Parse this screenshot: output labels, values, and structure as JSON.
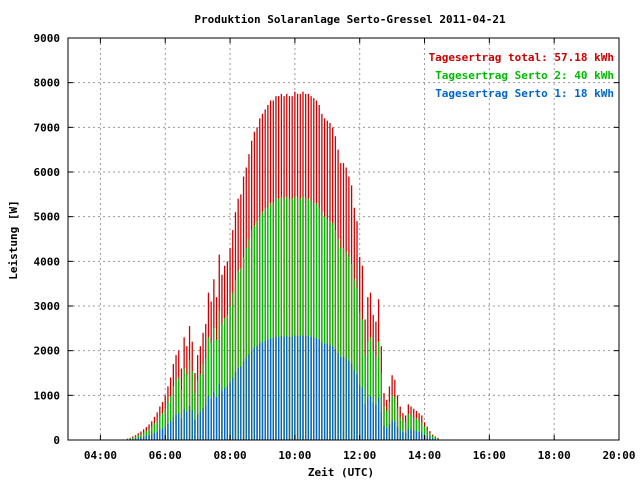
{
  "chart_data": {
    "type": "bar",
    "title": "Produktion Solaranlage Serto-Gressel 2011-04-21",
    "xlabel": "Zeit (UTC)",
    "ylabel": "Leistung [W]",
    "xlim": [
      3.0,
      20.0
    ],
    "ylim": [
      0,
      9000
    ],
    "x_ticks": [
      "04:00",
      "06:00",
      "08:00",
      "10:00",
      "12:00",
      "14:00",
      "16:00",
      "18:00",
      "20:00"
    ],
    "y_ticks": [
      "0",
      "1000",
      "2000",
      "3000",
      "4000",
      "5000",
      "6000",
      "7000",
      "8000",
      "9000"
    ],
    "grid": true,
    "legend_position": "top-right",
    "legend": [
      {
        "text": "Tagesertrag total: 57.18 kWh",
        "color": "#cc0000"
      },
      {
        "text": "Tagesertrag Serto 2: 40 kWh",
        "color": "#00bb00"
      },
      {
        "text": "Tagesertrag Serto 1: 18 kWh",
        "color": "#0066cc"
      }
    ],
    "interval_minutes": 5,
    "x_start": "04:50",
    "x_step_minutes": 5,
    "series": [
      {
        "name": "Tagesertrag total: 57.18 kWh",
        "color": "#cc0000",
        "values": [
          30,
          50,
          80,
          110,
          150,
          190,
          240,
          290,
          350,
          420,
          520,
          620,
          750,
          850,
          1000,
          1200,
          1400,
          1700,
          1900,
          2000,
          1600,
          2300,
          2100,
          2550,
          2200,
          1500,
          1900,
          2100,
          2400,
          2600,
          3300,
          3100,
          3600,
          3200,
          4150,
          3700,
          3900,
          4000,
          4300,
          4700,
          5100,
          5400,
          5500,
          5900,
          6100,
          6400,
          6700,
          6900,
          7000,
          7200,
          7300,
          7400,
          7500,
          7600,
          7600,
          7700,
          7700,
          7750,
          7700,
          7750,
          7700,
          7700,
          7800,
          7750,
          7750,
          7800,
          7750,
          7750,
          7700,
          7650,
          7600,
          7500,
          7300,
          7200,
          7150,
          7100,
          7000,
          6800,
          6500,
          6200,
          6200,
          6100,
          5900,
          5700,
          5200,
          4900,
          4100,
          3900,
          2700,
          3200,
          3300,
          2800,
          2650,
          3150,
          2100,
          1050,
          900,
          1200,
          1450,
          1350,
          1000,
          750,
          600,
          550,
          800,
          750,
          700,
          650,
          600,
          550,
          400,
          300,
          200,
          120,
          80,
          50
        ]
      },
      {
        "name": "Tagesertrag Serto 2: 40 kWh",
        "color": "#00bb00",
        "values": [
          20,
          35,
          55,
          80,
          100,
          130,
          170,
          200,
          250,
          300,
          370,
          440,
          530,
          600,
          700,
          840,
          980,
          1200,
          1330,
          1400,
          1120,
          1600,
          1470,
          1780,
          1540,
          1050,
          1330,
          1470,
          1700,
          1820,
          2300,
          2170,
          2500,
          2240,
          2900,
          2600,
          2730,
          2800,
          3000,
          3300,
          3570,
          3780,
          3850,
          4100,
          4300,
          4500,
          4700,
          4800,
          4900,
          5000,
          5100,
          5200,
          5200,
          5300,
          5300,
          5400,
          5400,
          5450,
          5400,
          5450,
          5400,
          5400,
          5450,
          5450,
          5400,
          5450,
          5400,
          5400,
          5350,
          5300,
          5300,
          5200,
          5100,
          5000,
          4950,
          4900,
          4850,
          4700,
          4500,
          4300,
          4300,
          4200,
          4100,
          3950,
          3600,
          3400,
          2850,
          2700,
          1900,
          2200,
          2300,
          2000,
          1850,
          2200,
          1500,
          750,
          650,
          850,
          1000,
          950,
          700,
          520,
          420,
          400,
          580,
          550,
          500,
          480,
          420,
          400,
          300,
          220,
          150,
          90,
          60,
          35
        ]
      },
      {
        "name": "Tagesertrag Serto 1: 18 kWh",
        "color": "#0066cc",
        "values": [
          10,
          15,
          25,
          35,
          45,
          60,
          75,
          90,
          110,
          130,
          160,
          190,
          230,
          260,
          300,
          360,
          420,
          510,
          570,
          600,
          480,
          690,
          630,
          760,
          660,
          450,
          570,
          630,
          720,
          780,
          990,
          930,
          1080,
          960,
          1250,
          1100,
          1170,
          1200,
          1290,
          1400,
          1530,
          1620,
          1650,
          1770,
          1830,
          1920,
          2000,
          2070,
          2100,
          2160,
          2190,
          2220,
          2250,
          2280,
          2280,
          2310,
          2310,
          2330,
          2310,
          2330,
          2310,
          2310,
          2340,
          2330,
          2330,
          2340,
          2330,
          2330,
          2310,
          2300,
          2280,
          2250,
          2190,
          2160,
          2150,
          2130,
          2100,
          2040,
          1950,
          1860,
          1860,
          1830,
          1770,
          1710,
          1560,
          1470,
          1230,
          1170,
          810,
          960,
          990,
          840,
          800,
          950,
          630,
          320,
          270,
          360,
          440,
          410,
          300,
          230,
          180,
          170,
          240,
          230,
          210,
          200,
          180,
          170,
          120,
          90,
          60,
          36,
          24,
          15
        ]
      }
    ]
  }
}
